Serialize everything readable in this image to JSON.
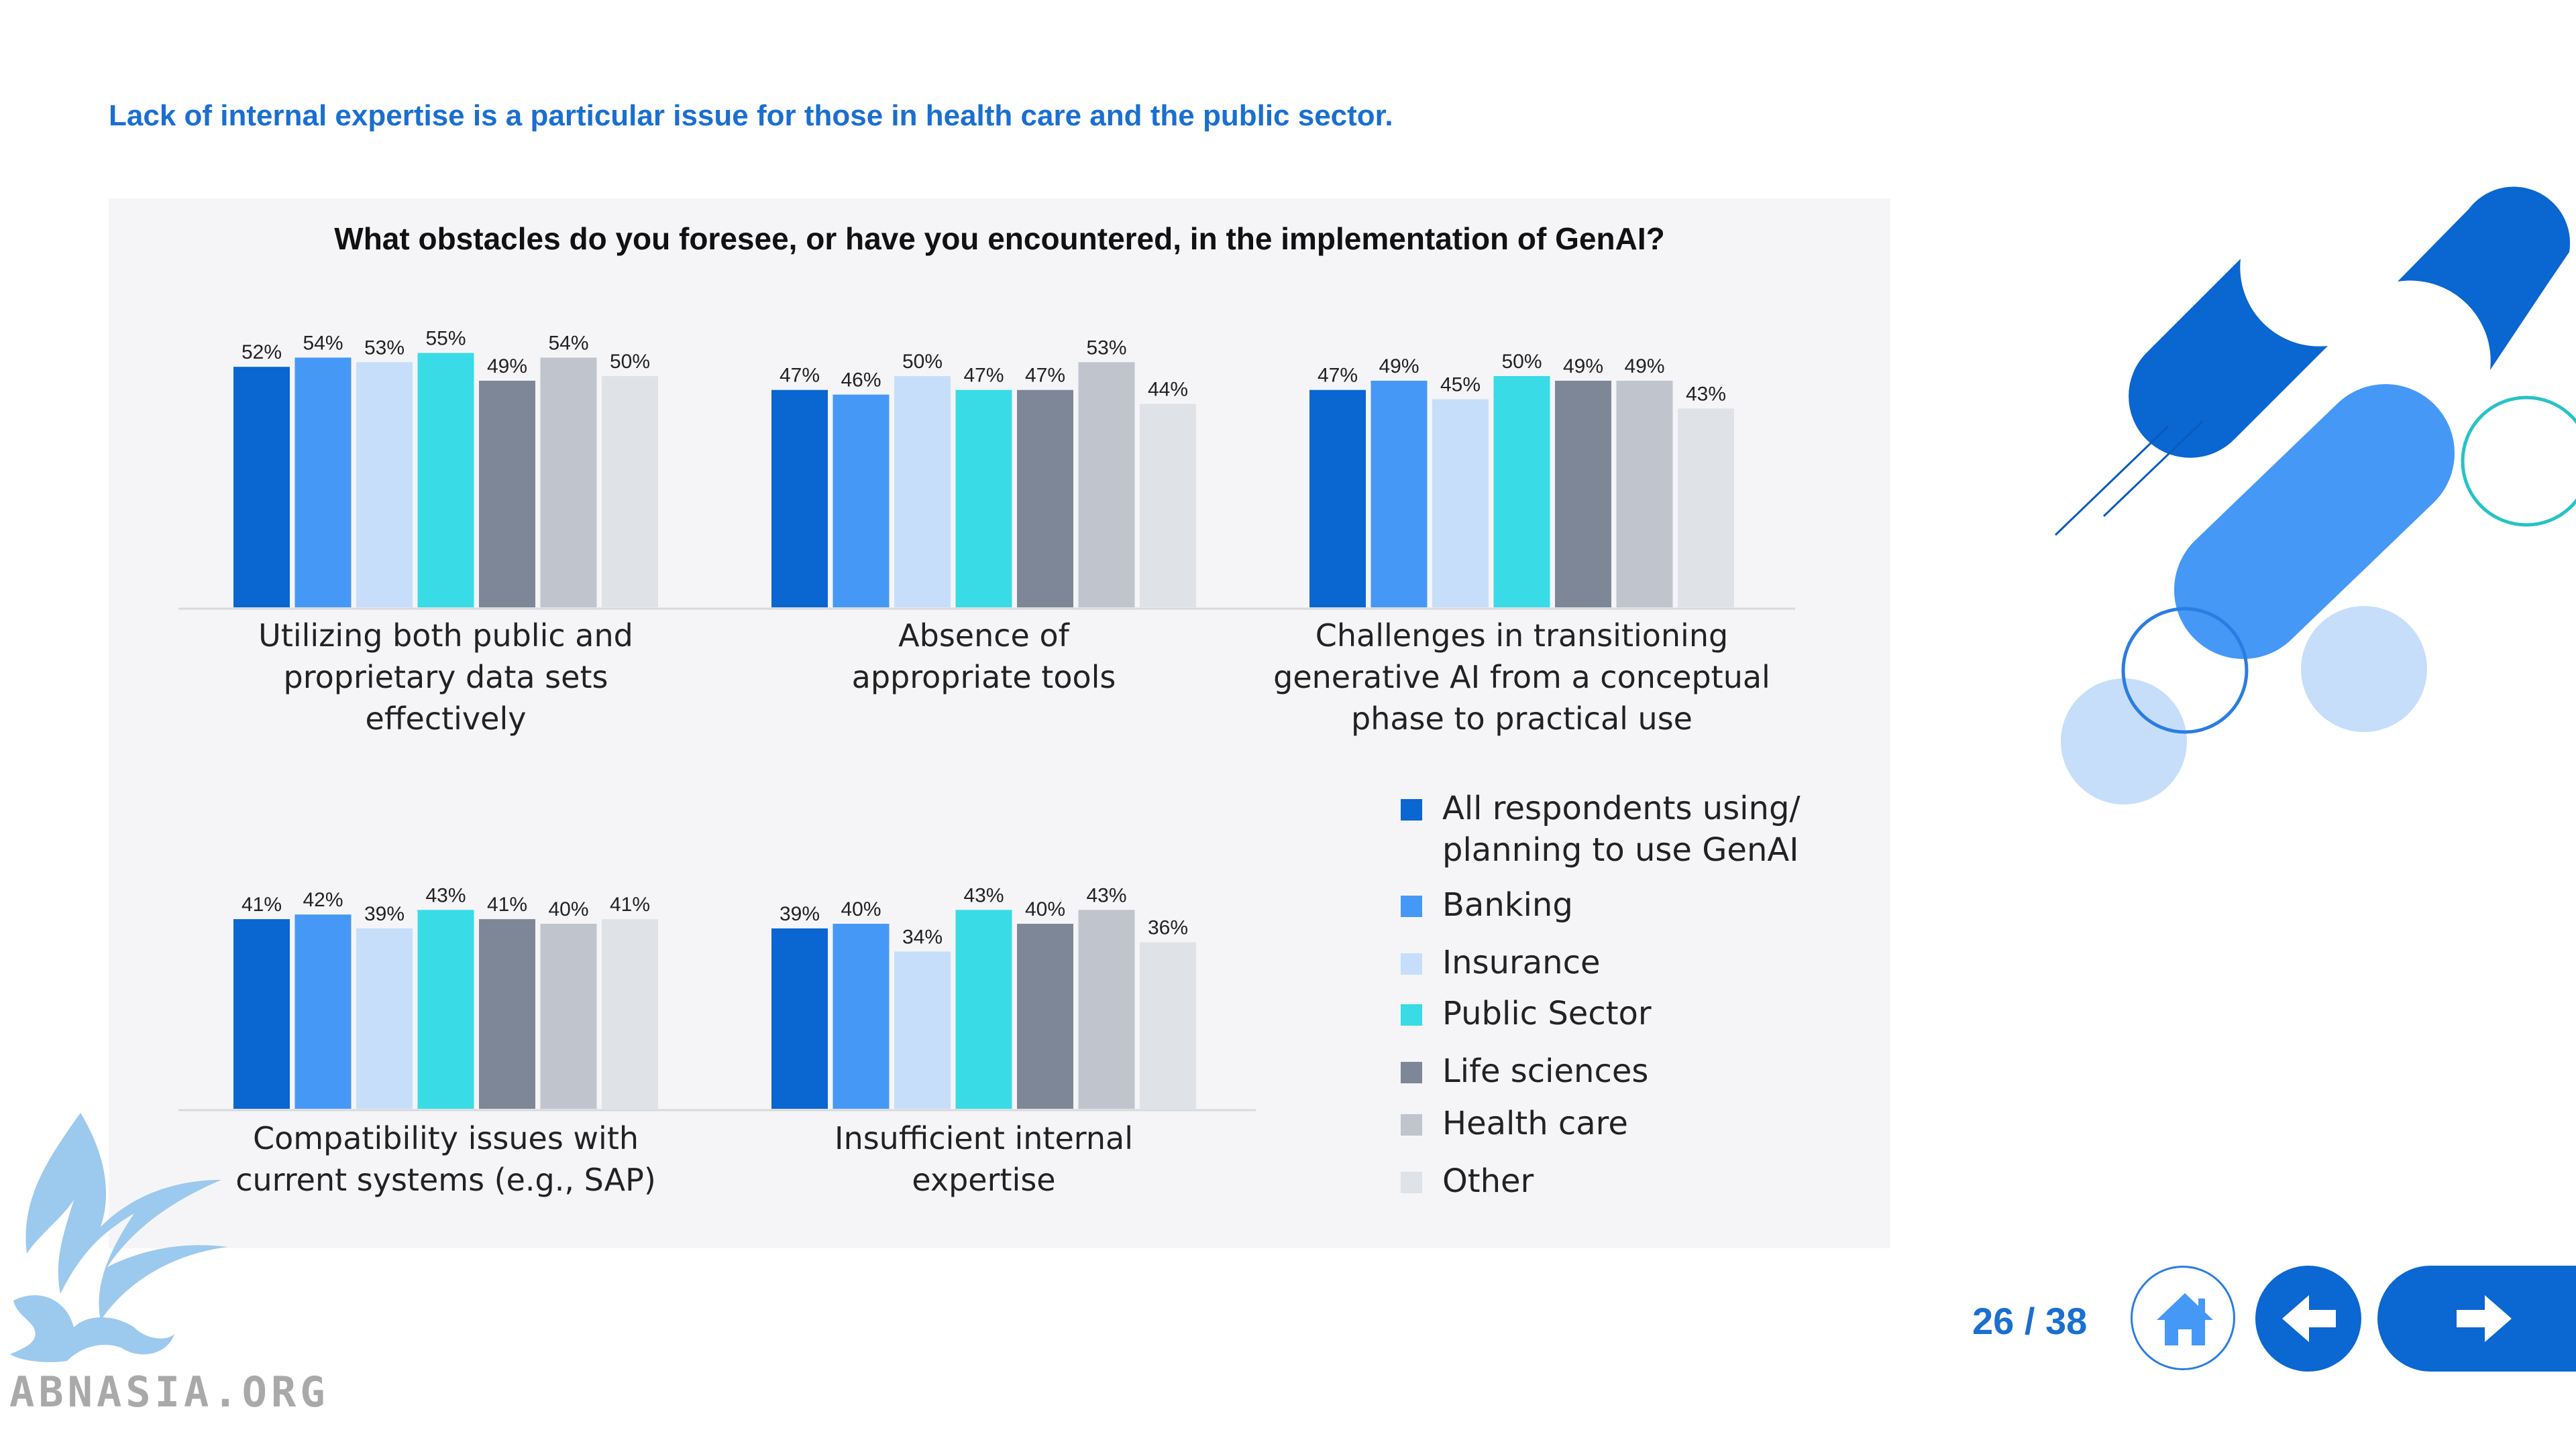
{
  "page": {
    "subtitle": "Lack of internal expertise is a particular issue for those in health care and the public sector.",
    "page_counter": "26 / 38",
    "watermark": "ABNASIA.ORG"
  },
  "colors": {
    "series": [
      "#0a66d0",
      "#4698f6",
      "#c6defa",
      "#39dbe6",
      "#7d8797",
      "#c0c4cd",
      "#dfe2e6"
    ],
    "accent": "#1a6fd0"
  },
  "icons": {
    "home": "home-icon",
    "prev": "arrow-left-icon",
    "next": "arrow-right-icon"
  },
  "chart_data": {
    "type": "bar",
    "title": "What obstacles do you foresee, or have you encountered, in the implementation of GenAI?",
    "ylim": [
      0,
      60
    ],
    "grid": false,
    "legend_position": "right",
    "series_names": [
      "All respondents using/ planning to use GenAI",
      "Banking",
      "Insurance",
      "Public Sector",
      "Life sciences",
      "Health care",
      "Other"
    ],
    "legend_lines": [
      [
        "All respondents using/",
        "planning to use GenAI"
      ],
      [
        "Banking"
      ],
      [
        "Insurance"
      ],
      [
        "Public Sector"
      ],
      [
        "Life sciences"
      ],
      [
        "Health care"
      ],
      [
        "Other"
      ]
    ],
    "groups": [
      {
        "category": "Utilizing both public and proprietary data sets effectively",
        "label_lines": [
          "Utilizing both public and",
          "proprietary data sets",
          "effectively"
        ],
        "values": [
          52,
          54,
          53,
          55,
          49,
          54,
          50
        ]
      },
      {
        "category": "Absence of appropriate tools",
        "label_lines": [
          "Absence of",
          "appropriate tools"
        ],
        "values": [
          47,
          46,
          50,
          47,
          47,
          53,
          44
        ]
      },
      {
        "category": "Challenges in transitioning generative AI from a conceptual phase to practical use",
        "label_lines": [
          "Challenges in transitioning",
          "generative AI from a conceptual",
          "phase to practical use"
        ],
        "values": [
          47,
          49,
          45,
          50,
          49,
          49,
          43
        ]
      },
      {
        "category": "Compatibility issues with current systems (e.g., SAP)",
        "label_lines": [
          "Compatibility issues with",
          "current systems (e.g., SAP)"
        ],
        "values": [
          41,
          42,
          39,
          43,
          41,
          40,
          41
        ]
      },
      {
        "category": "Insufficient internal expertise",
        "label_lines": [
          "Insufficient internal",
          "expertise"
        ],
        "values": [
          39,
          40,
          34,
          43,
          40,
          43,
          36
        ]
      }
    ]
  }
}
